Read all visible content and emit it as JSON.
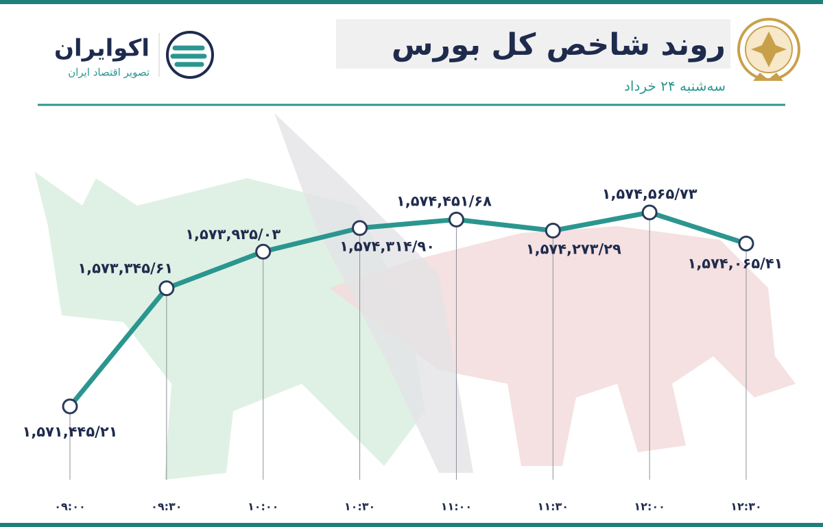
{
  "header": {
    "title": "روند شاخص کل بورس",
    "subtitle": "سه‌شنبه ۲۴ خرداد",
    "brand": "اکوایران",
    "brand_tagline": "تصویر اقتصاد ایران"
  },
  "chart_data": {
    "type": "line",
    "categories": [
      "۰۹:۰۰",
      "۰۹:۳۰",
      "۱۰:۰۰",
      "۱۰:۳۰",
      "۱۱:۰۰",
      "۱۱:۳۰",
      "۱۲:۰۰",
      "۱۲:۳۰"
    ],
    "series": [
      {
        "name": "شاخص کل",
        "color": "#2b968f",
        "values": [
          1571445.21,
          1573345.61,
          1573935.03,
          1574314.9,
          1574451.68,
          1574273.29,
          1574565.73,
          1574065.41
        ],
        "value_labels": [
          "۱,۵۷۱,۴۴۵/۲۱",
          "۱,۵۷۳,۳۴۵/۶۱",
          "۱,۵۷۳,۹۳۵/۰۳",
          "۱,۵۷۴,۳۱۴/۹۰",
          "۱,۵۷۴,۴۵۱/۶۸",
          "۱,۵۷۴,۲۷۳/۲۹",
          "۱,۵۷۴,۵۶۵/۷۳",
          "۱,۵۷۴,۰۶۵/۴۱"
        ]
      }
    ]
  }
}
